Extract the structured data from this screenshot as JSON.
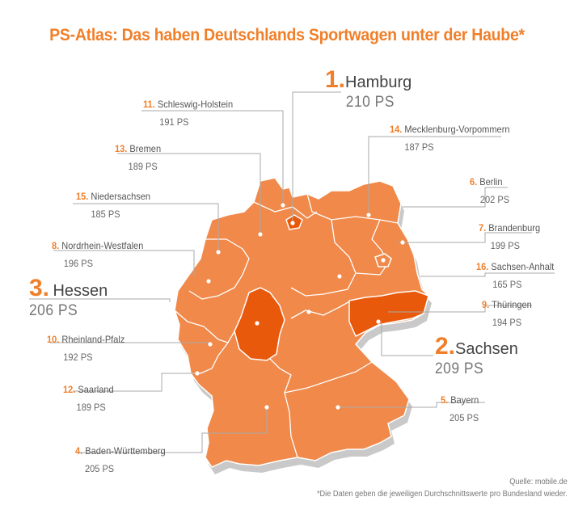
{
  "title": "PS-Atlas: Das haben Deutschlands Sportwagen unter der Haube*",
  "accent_color": "#f07f2a",
  "highlight_color": "#e8590c",
  "map_color": "#f0894a",
  "source": "Quelle: mobile.de",
  "footnote": "*Die Daten geben die jeweiligen Durchschnittswerte pro Bundesland wieder.",
  "chart_data": {
    "type": "map",
    "title": "PS-Atlas: Das haben Deutschlands Sportwagen unter der Haube*",
    "unit": "PS",
    "regions": [
      {
        "rank": "1.",
        "name": "Hamburg",
        "value": "210 PS",
        "ps": 210
      },
      {
        "rank": "2.",
        "name": "Sachsen",
        "value": "209 PS",
        "ps": 209
      },
      {
        "rank": "3.",
        "name": "Hessen",
        "value": "206 PS",
        "ps": 206
      },
      {
        "rank": "4.",
        "name": "Baden-Württemberg",
        "value": "205 PS",
        "ps": 205
      },
      {
        "rank": "5.",
        "name": "Bayern",
        "value": "205 PS",
        "ps": 205
      },
      {
        "rank": "6.",
        "name": "Berlin",
        "value": "202 PS",
        "ps": 202
      },
      {
        "rank": "7.",
        "name": "Brandenburg",
        "value": "199 PS",
        "ps": 199
      },
      {
        "rank": "8.",
        "name": "Nordrhein-Westfalen",
        "value": "196 PS",
        "ps": 196
      },
      {
        "rank": "9.",
        "name": "Thüringen",
        "value": "194 PS",
        "ps": 194
      },
      {
        "rank": "10.",
        "name": "Rheinland-Pfalz",
        "value": "192 PS",
        "ps": 192
      },
      {
        "rank": "11.",
        "name": "Schleswig-Holstein",
        "value": "191 PS",
        "ps": 191
      },
      {
        "rank": "12.",
        "name": "Saarland",
        "value": "189 PS",
        "ps": 189
      },
      {
        "rank": "13.",
        "name": "Bremen",
        "value": "189 PS",
        "ps": 189
      },
      {
        "rank": "14.",
        "name": "Mecklenburg-Vorpommern",
        "value": "187 PS",
        "ps": 187
      },
      {
        "rank": "15.",
        "name": "Niedersachsen",
        "value": "185 PS",
        "ps": 185
      },
      {
        "rank": "16.",
        "name": "Sachsen-Anhalt",
        "value": "165 PS",
        "ps": 165
      }
    ]
  }
}
